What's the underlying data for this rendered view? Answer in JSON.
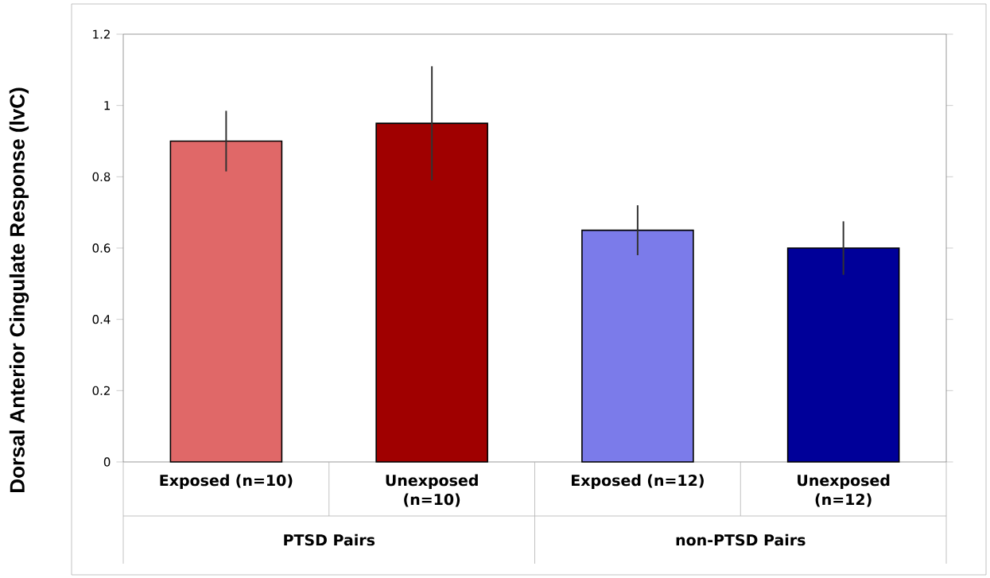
{
  "chart_data": {
    "type": "bar",
    "ylabel": "Dorsal Anterior Cingulate Response (lvC)",
    "categories": [
      "Exposed (n=10)",
      "Unexposed (n=10)",
      "Exposed (n=12)",
      "Unexposed (n=12)"
    ],
    "values": [
      0.9,
      0.95,
      0.65,
      0.6
    ],
    "colors": [
      "#e06868",
      "#a00000",
      "#7b7bea",
      "#000099"
    ],
    "errors": [
      0.085,
      0.16,
      0.07,
      0.075
    ],
    "ylim": [
      0,
      1.2
    ],
    "yticks": [
      0,
      0.2,
      0.4,
      0.6,
      0.8,
      1,
      1.2
    ],
    "annotations": [
      "PTSD Pairs",
      "non-PTSD Pairs"
    ]
  }
}
